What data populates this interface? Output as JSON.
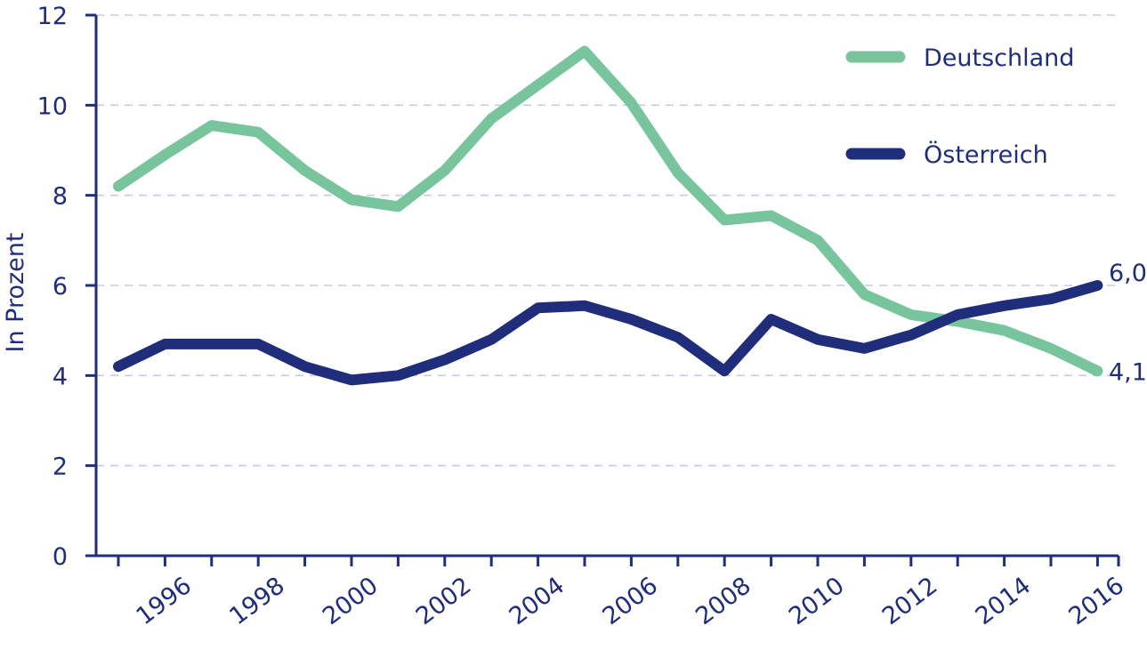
{
  "chart_data": {
    "type": "line",
    "title": "",
    "xlabel": "",
    "ylabel": "In Prozent",
    "ylim": [
      0,
      12
    ],
    "yticks": [
      "0",
      "2",
      "4",
      "6",
      "8",
      "10",
      "12"
    ],
    "xticks": [
      "1996",
      "1998",
      "2000",
      "2002",
      "2004",
      "2006",
      "2008",
      "2010",
      "2012",
      "2014",
      "2016"
    ],
    "x": [
      1995,
      1996,
      1997,
      1998,
      1999,
      2000,
      2001,
      2002,
      2003,
      2004,
      2005,
      2006,
      2007,
      2008,
      2009,
      2010,
      2011,
      2012,
      2013,
      2014,
      2015,
      2016
    ],
    "grid": "horizontal dashed",
    "legend_position": "top-right",
    "series": [
      {
        "name": "Deutschland",
        "color": "#78c49d",
        "values": [
          8.2,
          8.9,
          9.55,
          9.4,
          8.55,
          7.9,
          7.75,
          8.55,
          9.7,
          10.45,
          11.2,
          10.05,
          8.5,
          7.45,
          7.55,
          7.0,
          5.8,
          5.35,
          5.2,
          5.0,
          4.6,
          4.1
        ],
        "end_label": "4,1"
      },
      {
        "name": "Österreich",
        "color": "#1f2d7a",
        "values": [
          4.2,
          4.7,
          4.7,
          4.7,
          4.2,
          3.9,
          4.0,
          4.35,
          4.8,
          5.5,
          5.55,
          5.25,
          4.85,
          4.1,
          5.25,
          4.8,
          4.6,
          4.9,
          5.35,
          5.55,
          5.7,
          6.0
        ],
        "end_label": "6,0"
      }
    ]
  }
}
